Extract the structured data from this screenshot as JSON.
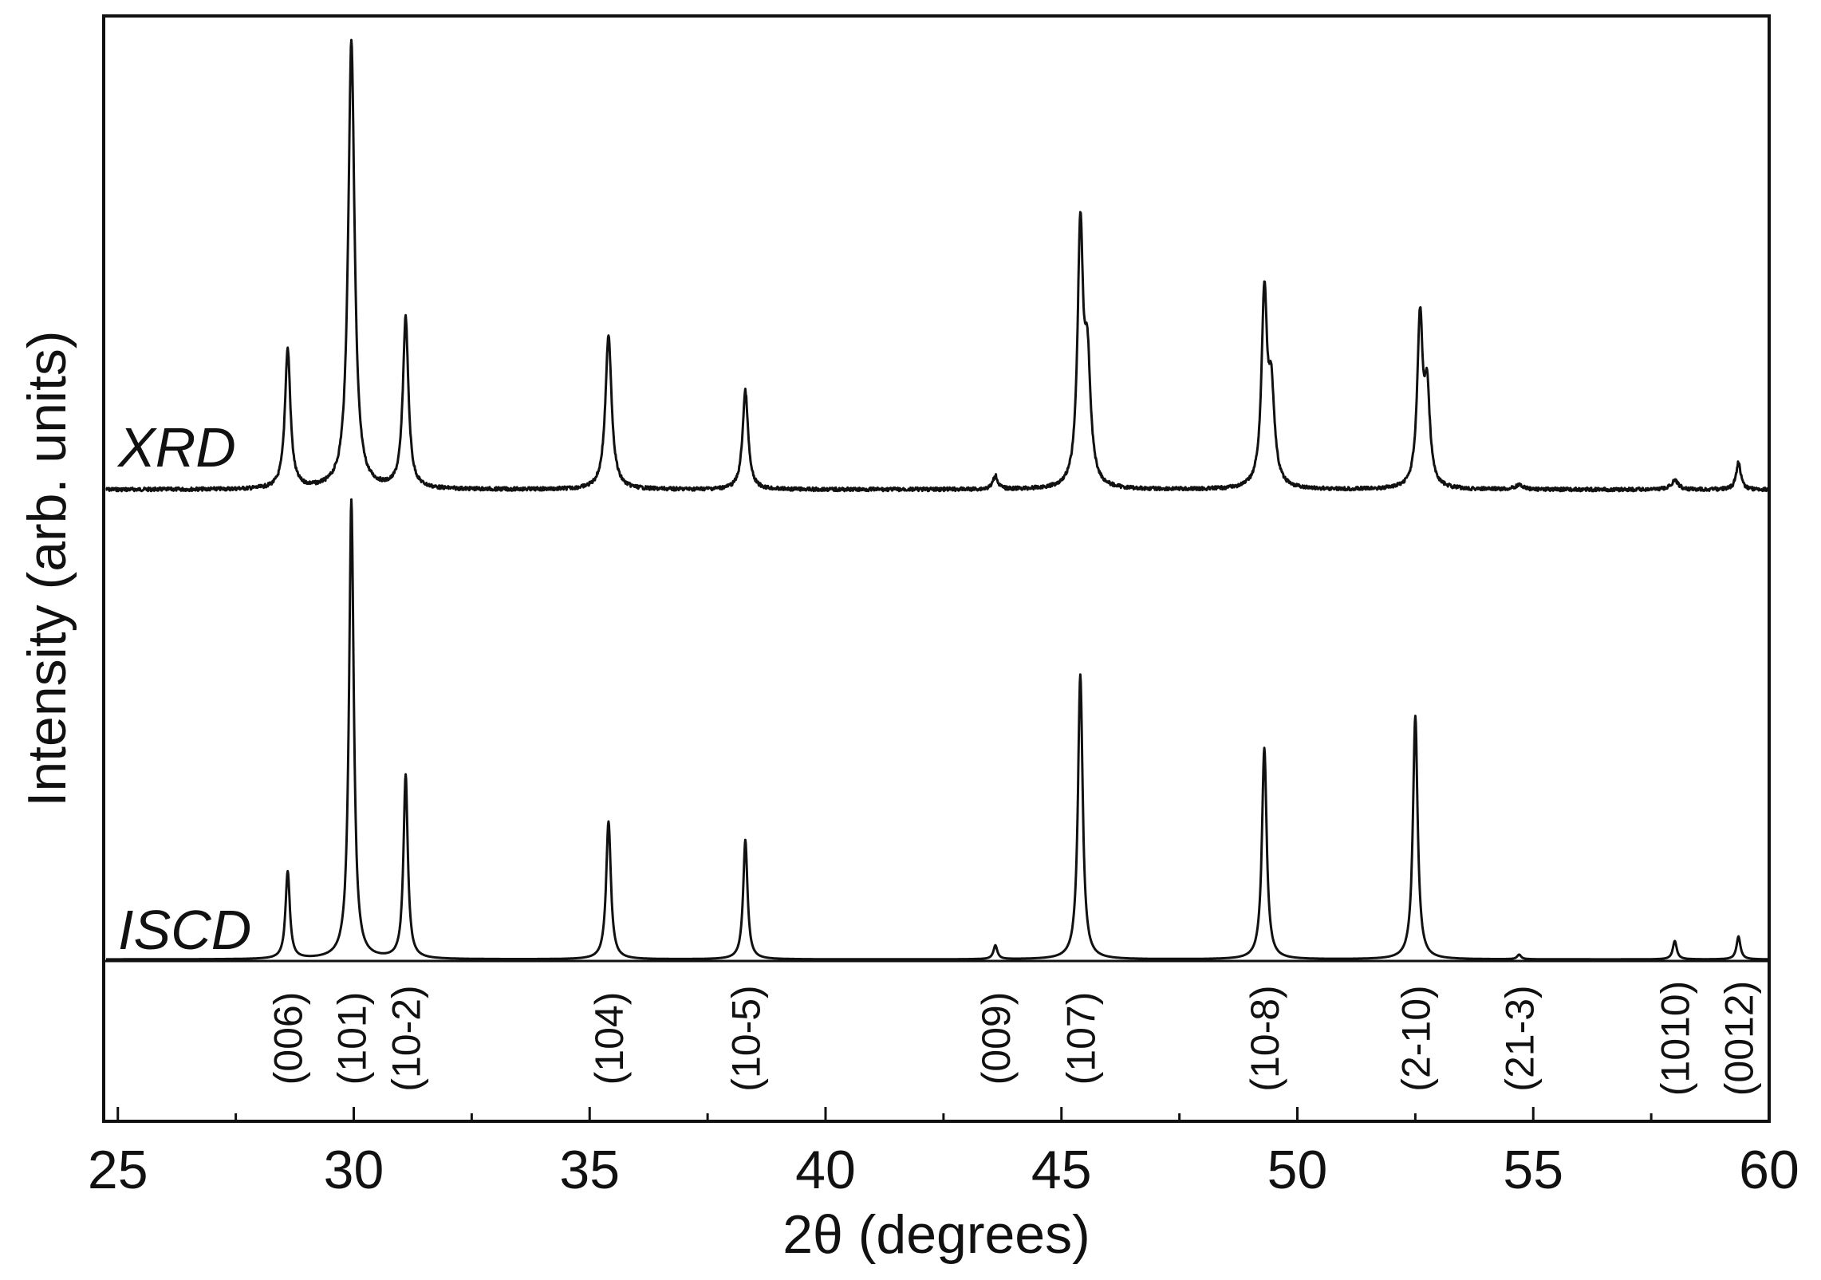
{
  "chart_data": {
    "type": "line",
    "xlabel": "2θ  (degrees)",
    "ylabel": "Intensity (arb. units)",
    "xlim": [
      24.7,
      60
    ],
    "xticks": [
      25,
      30,
      35,
      40,
      45,
      50,
      55,
      60
    ],
    "xminor_step": 2.5,
    "grid": false,
    "series": [
      {
        "name": "XRD",
        "baseline": 0.0,
        "peaks": [
          {
            "x": 28.6,
            "h": 0.31,
            "w": 0.07
          },
          {
            "x": 29.95,
            "h": 1.0,
            "w": 0.08
          },
          {
            "x": 31.1,
            "h": 0.38,
            "w": 0.07
          },
          {
            "x": 35.4,
            "h": 0.34,
            "w": 0.08
          },
          {
            "x": 38.3,
            "h": 0.22,
            "w": 0.07
          },
          {
            "x": 43.6,
            "h": 0.03,
            "w": 0.06
          },
          {
            "x": 45.4,
            "h": 0.56,
            "w": 0.07
          },
          {
            "x": 45.55,
            "h": 0.26,
            "w": 0.08
          },
          {
            "x": 49.3,
            "h": 0.42,
            "w": 0.07
          },
          {
            "x": 49.45,
            "h": 0.2,
            "w": 0.08
          },
          {
            "x": 52.6,
            "h": 0.37,
            "w": 0.07
          },
          {
            "x": 52.75,
            "h": 0.2,
            "w": 0.07
          },
          {
            "x": 54.7,
            "h": 0.01,
            "w": 0.1
          },
          {
            "x": 58.0,
            "h": 0.02,
            "w": 0.09
          },
          {
            "x": 59.35,
            "h": 0.06,
            "w": 0.06
          }
        ]
      },
      {
        "name": "ISCD",
        "baseline": 0.0,
        "peaks": [
          {
            "x": 28.6,
            "h": 0.19,
            "w": 0.055
          },
          {
            "x": 29.95,
            "h": 1.0,
            "w": 0.06
          },
          {
            "x": 31.1,
            "h": 0.4,
            "w": 0.055
          },
          {
            "x": 35.4,
            "h": 0.3,
            "w": 0.06
          },
          {
            "x": 38.3,
            "h": 0.26,
            "w": 0.055
          },
          {
            "x": 43.6,
            "h": 0.03,
            "w": 0.05
          },
          {
            "x": 45.4,
            "h": 0.62,
            "w": 0.06
          },
          {
            "x": 49.3,
            "h": 0.46,
            "w": 0.06
          },
          {
            "x": 52.5,
            "h": 0.53,
            "w": 0.06
          },
          {
            "x": 54.7,
            "h": 0.01,
            "w": 0.05
          },
          {
            "x": 58.0,
            "h": 0.04,
            "w": 0.05
          },
          {
            "x": 59.35,
            "h": 0.05,
            "w": 0.05
          }
        ]
      }
    ],
    "annotations": [
      {
        "text": "(006)",
        "x": 28.6
      },
      {
        "text": "(101)",
        "x": 29.95
      },
      {
        "text": "(10-2)",
        "x": 31.1
      },
      {
        "text": "(104)",
        "x": 35.4
      },
      {
        "text": "(10-5)",
        "x": 38.3
      },
      {
        "text": "(009)",
        "x": 43.6
      },
      {
        "text": "(107)",
        "x": 45.4
      },
      {
        "text": "(10-8)",
        "x": 49.3
      },
      {
        "text": "(2-10)",
        "x": 52.5
      },
      {
        "text": "(21-3)",
        "x": 54.7
      },
      {
        "text": "(1010)",
        "x": 58.0
      },
      {
        "text": "(0012)",
        "x": 59.35
      }
    ]
  }
}
